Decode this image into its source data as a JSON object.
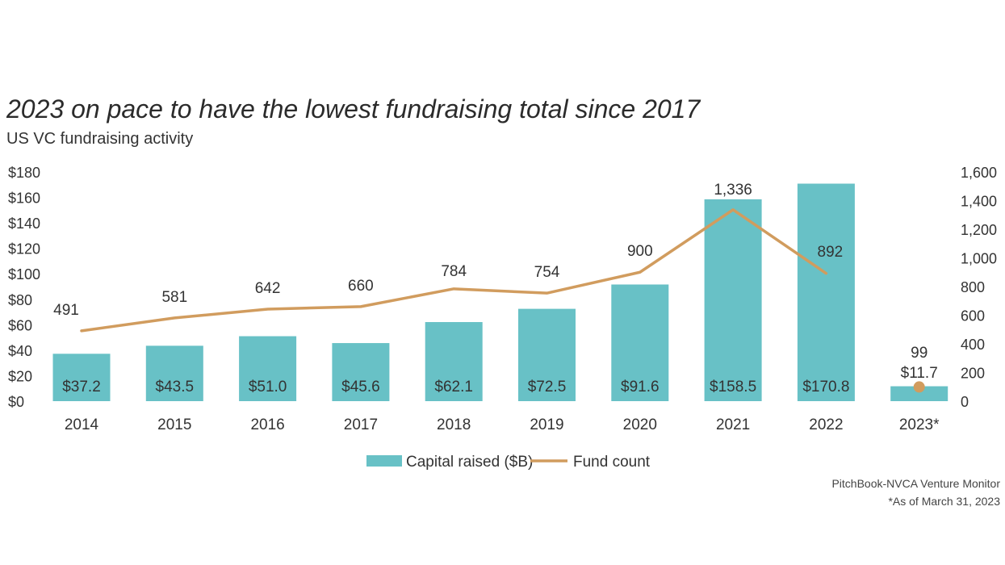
{
  "title": "2023 on pace to have the lowest fundraising total since 2017",
  "subtitle": "US VC fundraising activity",
  "source": "PitchBook-NVCA Venture Monitor",
  "footnote": "*As of March 31, 2023",
  "colors": {
    "bar": "#68c1c6",
    "line": "#d19c5e"
  },
  "chart_data": {
    "type": "bar",
    "categories": [
      "2014",
      "2015",
      "2016",
      "2017",
      "2018",
      "2019",
      "2020",
      "2021",
      "2022",
      "2023*"
    ],
    "series": [
      {
        "name": "Capital raised ($B)",
        "type": "bar",
        "axis": "left",
        "values": [
          37.2,
          43.5,
          51.0,
          45.6,
          62.1,
          72.5,
          91.6,
          158.5,
          170.8,
          11.7
        ],
        "labels": [
          "$37.2",
          "$43.5",
          "$51.0",
          "$45.6",
          "$62.1",
          "$72.5",
          "$91.6",
          "$158.5",
          "$170.8",
          "$11.7"
        ]
      },
      {
        "name": "Fund count",
        "type": "line",
        "axis": "right",
        "values": [
          491,
          581,
          642,
          660,
          784,
          754,
          900,
          1336,
          892,
          99
        ],
        "labels": [
          "491",
          "581",
          "642",
          "660",
          "784",
          "754",
          "900",
          "1,336",
          "892",
          "99"
        ]
      }
    ],
    "y_left": {
      "range": [
        0,
        180
      ],
      "ticks": [
        "$0",
        "$20",
        "$40",
        "$60",
        "$80",
        "$100",
        "$120",
        "$140",
        "$160",
        "$180"
      ]
    },
    "y_right": {
      "range": [
        0,
        1600
      ],
      "ticks": [
        "0",
        "200",
        "400",
        "600",
        "800",
        "1,000",
        "1,200",
        "1,400",
        "1,600"
      ]
    },
    "legend_position": "bottom-center",
    "grid": false
  }
}
